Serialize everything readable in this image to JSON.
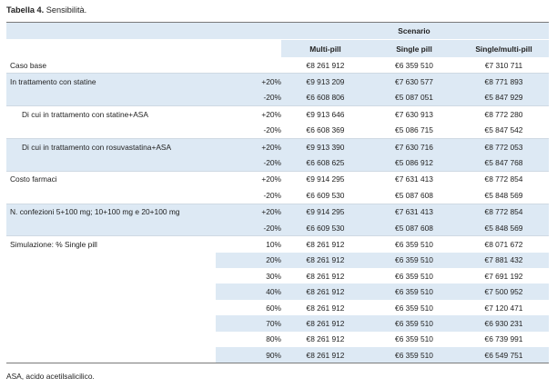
{
  "caption": {
    "label": "Tabella 4.",
    "text": "Sensibilità."
  },
  "header": {
    "group": "Scenario",
    "columns": [
      "Multi-pill",
      "Single pill",
      "Single/multi-pill"
    ]
  },
  "rows": [
    {
      "label": "Caso base",
      "variation": "",
      "values": [
        "€8 261 912",
        "€6 359 510",
        "€7 310 711"
      ]
    },
    {
      "label": "In trattamento con statine",
      "variation": "+20%",
      "values": [
        "€9 913 209",
        "€7 630 577",
        "€8 771 893"
      ]
    },
    {
      "label": "",
      "variation": "-20%",
      "values": [
        "€6 608 806",
        "€5 087 051",
        "€5 847 929"
      ]
    },
    {
      "label": "Di cui in trattamento con statine+ASA",
      "variation": "+20%",
      "values": [
        "€9 913 646",
        "€7 630 913",
        "€8 772 280"
      ]
    },
    {
      "label": "",
      "variation": "-20%",
      "values": [
        "€6 608 369",
        "€5 086 715",
        "€5 847 542"
      ]
    },
    {
      "label": "Di cui in trattamento con rosuvastatina+ASA",
      "variation": "+20%",
      "values": [
        "€9 913 390",
        "€7 630 716",
        "€8 772 053"
      ]
    },
    {
      "label": "",
      "variation": "-20%",
      "values": [
        "€6 608 625",
        "€5 086 912",
        "€5 847 768"
      ]
    },
    {
      "label": "Costo farmaci",
      "variation": "+20%",
      "values": [
        "€9 914 295",
        "€7 631 413",
        "€8 772 854"
      ]
    },
    {
      "label": "",
      "variation": "-20%",
      "values": [
        "€6 609 530",
        "€5 087 608",
        "€5 848 569"
      ]
    },
    {
      "label": "N. confezioni 5+100 mg; 10+100 mg e 20+100 mg",
      "variation": "+20%",
      "values": [
        "€9 914 295",
        "€7 631 413",
        "€8 772 854"
      ]
    },
    {
      "label": "",
      "variation": "-20%",
      "values": [
        "€6 609 530",
        "€5 087 608",
        "€5 848 569"
      ]
    },
    {
      "label": "Simulazione: % Single pill",
      "variation": "10%",
      "values": [
        "€8 261 912",
        "€6 359 510",
        "€8 071 672"
      ]
    },
    {
      "label": "",
      "variation": "20%",
      "values": [
        "€8 261 912",
        "€6 359 510",
        "€7 881 432"
      ]
    },
    {
      "label": "",
      "variation": "30%",
      "values": [
        "€8 261 912",
        "€6 359 510",
        "€7 691 192"
      ]
    },
    {
      "label": "",
      "variation": "40%",
      "values": [
        "€8 261 912",
        "€6 359 510",
        "€7 500 952"
      ]
    },
    {
      "label": "",
      "variation": "60%",
      "values": [
        "€8 261 912",
        "€6 359 510",
        "€7 120 471"
      ]
    },
    {
      "label": "",
      "variation": "70%",
      "values": [
        "€8 261 912",
        "€6 359 510",
        "€6 930 231"
      ]
    },
    {
      "label": "",
      "variation": "80%",
      "values": [
        "€8 261 912",
        "€6 359 510",
        "€6 739 991"
      ]
    },
    {
      "label": "",
      "variation": "90%",
      "values": [
        "€8 261 912",
        "€6 359 510",
        "€6 549 751"
      ]
    }
  ],
  "footnote": "ASA, acido acetilsalicilico."
}
